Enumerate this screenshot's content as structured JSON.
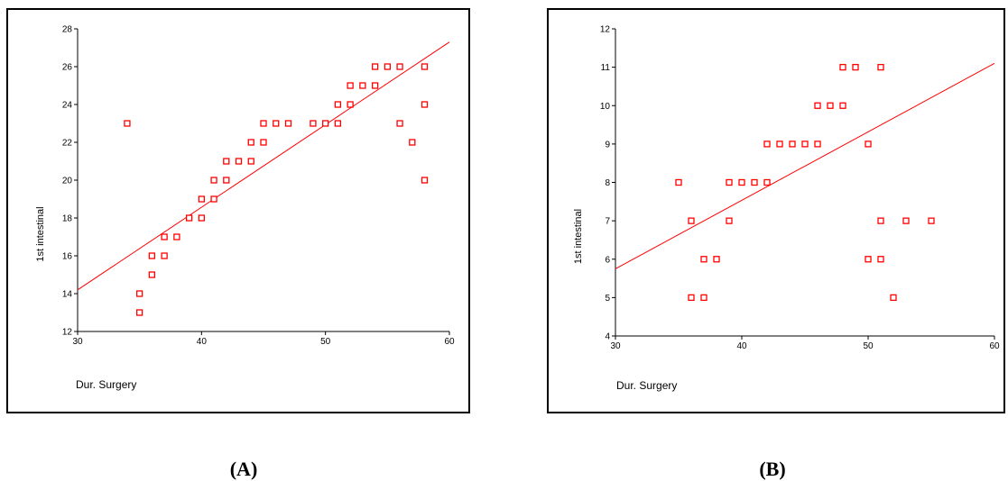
{
  "chart_data": [
    {
      "type": "scatter",
      "panel_label": "(A)",
      "xlabel": "Dur. Surgery",
      "ylabel": "1st intestinal",
      "xlim": [
        30,
        60
      ],
      "ylim": [
        12,
        28
      ],
      "xticks": [
        30,
        40,
        50,
        60
      ],
      "yticks": [
        12,
        14,
        16,
        18,
        20,
        22,
        24,
        26,
        28
      ],
      "points": [
        [
          34,
          23
        ],
        [
          35,
          13
        ],
        [
          35,
          14
        ],
        [
          36,
          15
        ],
        [
          36,
          16
        ],
        [
          37,
          16
        ],
        [
          37,
          17
        ],
        [
          38,
          17
        ],
        [
          39,
          18
        ],
        [
          40,
          18
        ],
        [
          40,
          19
        ],
        [
          41,
          19
        ],
        [
          41,
          20
        ],
        [
          42,
          20
        ],
        [
          42,
          21
        ],
        [
          43,
          21
        ],
        [
          44,
          21
        ],
        [
          44,
          22
        ],
        [
          45,
          22
        ],
        [
          45,
          23
        ],
        [
          46,
          23
        ],
        [
          47,
          23
        ],
        [
          49,
          23
        ],
        [
          50,
          23
        ],
        [
          51,
          23
        ],
        [
          51,
          24
        ],
        [
          52,
          24
        ],
        [
          52,
          25
        ],
        [
          53,
          25
        ],
        [
          54,
          25
        ],
        [
          54,
          26
        ],
        [
          55,
          26
        ],
        [
          56,
          26
        ],
        [
          56,
          23
        ],
        [
          57,
          22
        ],
        [
          58,
          26
        ],
        [
          58,
          24
        ],
        [
          58,
          20
        ]
      ],
      "fit_line": {
        "x": [
          30,
          60
        ],
        "y": [
          14.2,
          27.3
        ]
      },
      "marker_color": "#ff0000",
      "line_color": "#ff0000",
      "grid": false,
      "legend": false
    },
    {
      "type": "scatter",
      "panel_label": "(B)",
      "xlabel": "Dur. Surgery",
      "ylabel": "1st intestinal",
      "xlim": [
        30,
        60
      ],
      "ylim": [
        4,
        12
      ],
      "xticks": [
        30,
        40,
        50,
        60
      ],
      "yticks": [
        4,
        5,
        6,
        7,
        8,
        9,
        10,
        11,
        12
      ],
      "points": [
        [
          35,
          8
        ],
        [
          36,
          7
        ],
        [
          36,
          5
        ],
        [
          37,
          6
        ],
        [
          37,
          5
        ],
        [
          38,
          6
        ],
        [
          39,
          8
        ],
        [
          39,
          7
        ],
        [
          40,
          8
        ],
        [
          41,
          8
        ],
        [
          42,
          8
        ],
        [
          42,
          9
        ],
        [
          43,
          9
        ],
        [
          44,
          9
        ],
        [
          45,
          9
        ],
        [
          46,
          9
        ],
        [
          46,
          10
        ],
        [
          47,
          10
        ],
        [
          48,
          10
        ],
        [
          48,
          11
        ],
        [
          49,
          11
        ],
        [
          50,
          9
        ],
        [
          50,
          6
        ],
        [
          51,
          11
        ],
        [
          51,
          7
        ],
        [
          51,
          6
        ],
        [
          52,
          5
        ],
        [
          53,
          7
        ],
        [
          55,
          7
        ]
      ],
      "fit_line": {
        "x": [
          30,
          60
        ],
        "y": [
          5.75,
          11.1
        ]
      },
      "marker_color": "#ff0000",
      "line_color": "#ff0000",
      "grid": false,
      "legend": false
    }
  ]
}
